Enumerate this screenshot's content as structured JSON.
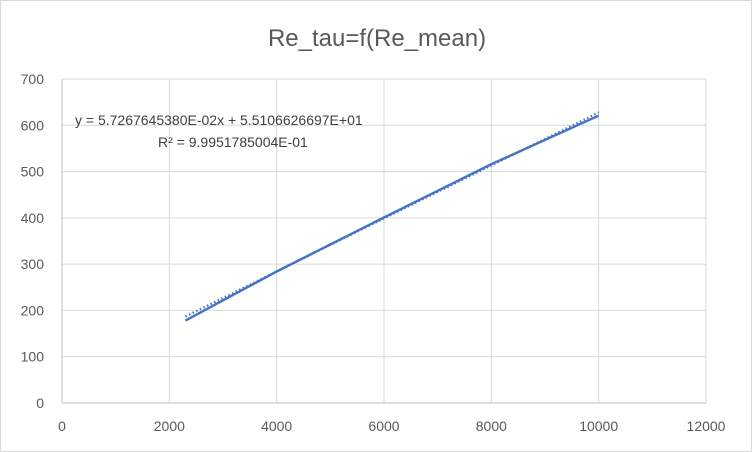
{
  "chart_data": {
    "type": "line",
    "title": "Re_tau=f(Re_mean)",
    "xlabel": "",
    "ylabel": "",
    "xlim": [
      0,
      12000
    ],
    "ylim": [
      0,
      700
    ],
    "xticks": [
      0,
      2000,
      4000,
      6000,
      8000,
      10000,
      12000
    ],
    "yticks": [
      0,
      100,
      200,
      300,
      400,
      500,
      600,
      700
    ],
    "grid": true,
    "legend": "none",
    "series": [
      {
        "values": [
          [
            2300,
            178
          ],
          [
            4000,
            284
          ],
          [
            6000,
            401
          ],
          [
            8000,
            516
          ],
          [
            10000,
            621
          ]
        ],
        "color": "#4472c4",
        "style": "solid"
      },
      {
        "values": [
          [
            2300,
            186.8
          ],
          [
            10000,
            627.8
          ]
        ],
        "color": "#4472c4",
        "style": "dotted"
      }
    ],
    "annotations": {
      "equation": "y = 5.7267645380E-02x + 5.5106626697E+01",
      "r_squared": "R² = 9.9951785004E-01"
    }
  }
}
